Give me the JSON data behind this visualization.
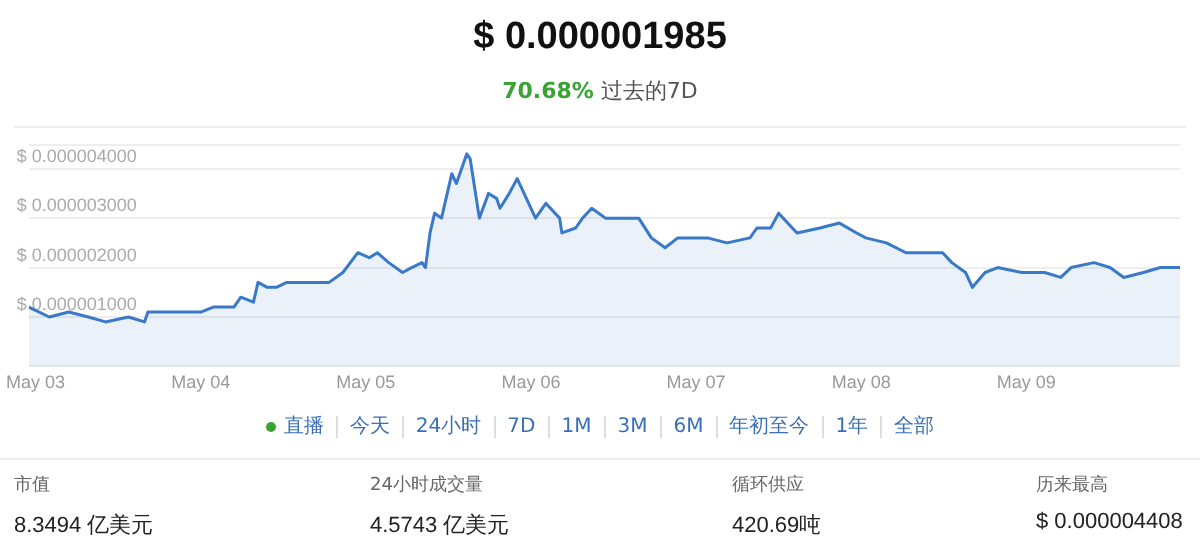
{
  "chart_data": [
    {
      "type": "area",
      "title": "$ 0.000001985",
      "subtitle": "70.68% 过去的7D",
      "series": [
        {
          "color": "#3a78c8",
          "x": [
            "--05-02T23:00",
            "--05-03T02:00",
            "--05-03T04:50",
            "--05-03T07:40",
            "--05-03T10:10",
            "--05-03T13:30",
            "--05-03T15:50",
            "--05-03T16:20",
            "--05-03T20:10",
            "--05-04T00:00",
            "--05-04T01:50",
            "--05-04T04:50",
            "--05-04T05:50",
            "--05-04T07:40",
            "--05-04T08:20",
            "--05-04T09:40",
            "--05-04T11:00",
            "--05-04T12:30",
            "--05-04T14:20",
            "--05-04T16:20",
            "--05-04T18:40",
            "--05-04T20:40",
            "--05-04T22:50",
            "--05-05T00:30",
            "--05-05T01:40",
            "--05-05T03:20",
            "--05-05T05:20",
            "--05-05T06:40",
            "--05-05T08:10",
            "--05-05T08:40",
            "--05-05T09:20",
            "--05-05T10:00",
            "--05-05T11:00",
            "--05-05T12:30",
            "--05-05T13:10",
            "--05-05T14:40",
            "--05-05T15:10",
            "--05-05T16:30",
            "--05-05T17:50",
            "--05-05T19:00",
            "--05-05T19:30",
            "--05-05T20:50",
            "--05-05T22:00",
            "--05-05T23:20",
            "--05-06T00:40",
            "--05-06T02:10",
            "--05-06T04:10",
            "--05-06T04:30",
            "--05-06T06:30",
            "--05-06T07:30",
            "--05-06T08:50",
            "--05-06T10:50",
            "--05-06T14:10",
            "--05-06T15:40",
            "--05-06T17:30",
            "--05-06T19:30",
            "--05-06T21:20",
            "--05-06T23:20",
            "--05-07T01:40",
            "--05-07T04:30",
            "--05-07T07:50",
            "--05-07T08:50",
            "--05-07T10:50",
            "--05-07T12:00",
            "--05-07T14:40",
            "--05-07T18:00",
            "--05-07T20:50",
            "--05-07T23:20",
            "--05-08T00:40",
            "--05-08T03:40",
            "--05-08T06:30",
            "--05-08T09:20",
            "--05-08T11:50",
            "--05-08T13:10",
            "--05-08T15:10",
            "--05-08T16:10",
            "--05-08T18:00",
            "--05-08T19:50",
            "--05-08T23:20",
            "--05-09T02:40",
            "--05-09T05:00",
            "--05-09T06:30",
            "--05-09T09:50",
            "--05-09T12:10",
            "--05-09T14:10",
            "--05-09T17:00",
            "--05-09T19:30",
            "--05-09T22:20"
          ],
          "values": [
            1.2e-06,
            1e-06,
            1.1e-06,
            1e-06,
            9e-07,
            1e-06,
            9e-07,
            1.1e-06,
            1.1e-06,
            1.1e-06,
            1.2e-06,
            1.2e-06,
            1.4e-06,
            1.3e-06,
            1.7e-06,
            1.6e-06,
            1.6e-06,
            1.7e-06,
            1.7e-06,
            1.7e-06,
            1.7e-06,
            1.9e-06,
            2.3e-06,
            2.2e-06,
            2.3e-06,
            2.1e-06,
            1.9e-06,
            2e-06,
            2.1e-06,
            2e-06,
            2.7e-06,
            3.1e-06,
            3e-06,
            3.9e-06,
            3.7e-06,
            4.3e-06,
            4.2e-06,
            3e-06,
            3.5e-06,
            3.4e-06,
            3.2e-06,
            3.5e-06,
            3.8e-06,
            3.4e-06,
            3e-06,
            3.3e-06,
            3e-06,
            2.7e-06,
            2.8e-06,
            3e-06,
            3.2e-06,
            3e-06,
            3e-06,
            3e-06,
            2.6e-06,
            2.4e-06,
            2.6e-06,
            2.6e-06,
            2.6e-06,
            2.5e-06,
            2.6e-06,
            2.8e-06,
            2.8e-06,
            3.1e-06,
            2.7e-06,
            2.8e-06,
            2.9e-06,
            2.7e-06,
            2.6e-06,
            2.5e-06,
            2.3e-06,
            2.3e-06,
            2.3e-06,
            2.1e-06,
            1.9e-06,
            1.6e-06,
            1.9e-06,
            2e-06,
            1.9e-06,
            1.9e-06,
            1.8e-06,
            2e-06,
            2.1e-06,
            2e-06,
            1.8e-06,
            1.9e-06,
            2e-06,
            2e-06
          ]
        }
      ],
      "xlim": [
        "--05-02T23:00",
        "--05-09T22:20"
      ],
      "xticks": [
        {
          "value": "--05-03",
          "label": "May 03"
        },
        {
          "value": "--05-04",
          "label": "May 04"
        },
        {
          "value": "--05-05",
          "label": "May 05"
        },
        {
          "value": "--05-06",
          "label": "May 06"
        },
        {
          "value": "--05-07",
          "label": "May 07"
        },
        {
          "value": "--05-08",
          "label": "May 08"
        },
        {
          "value": "--05-09",
          "label": "May 09"
        }
      ],
      "ylim": [
        0,
        4.5e-06
      ],
      "yticks": [
        {
          "value": 0,
          "label": null
        },
        {
          "value": 1e-06,
          "label": "$ 0.000001000"
        },
        {
          "value": 2e-06,
          "label": "$ 0.000002000"
        },
        {
          "value": 3e-06,
          "label": "$ 0.000003000"
        },
        {
          "value": 4e-06,
          "label": "$ 0.000004000"
        }
      ],
      "grid": "y",
      "legend": false,
      "marker": "none",
      "line_style": "solid",
      "annotations": [
        "直播",
        "今天",
        "24小时",
        "7D",
        "1M",
        "3M",
        "6M",
        "年初至今",
        "1年",
        "全部"
      ]
    },
    {
      "type": "other",
      "annotations": [
        "市值",
        "8.3494 亿美元",
        "24小时成交量",
        "4.5743 亿美元",
        "循环供应",
        "420.69吨",
        "历来最高",
        "$ 0.000004408"
      ]
    }
  ]
}
